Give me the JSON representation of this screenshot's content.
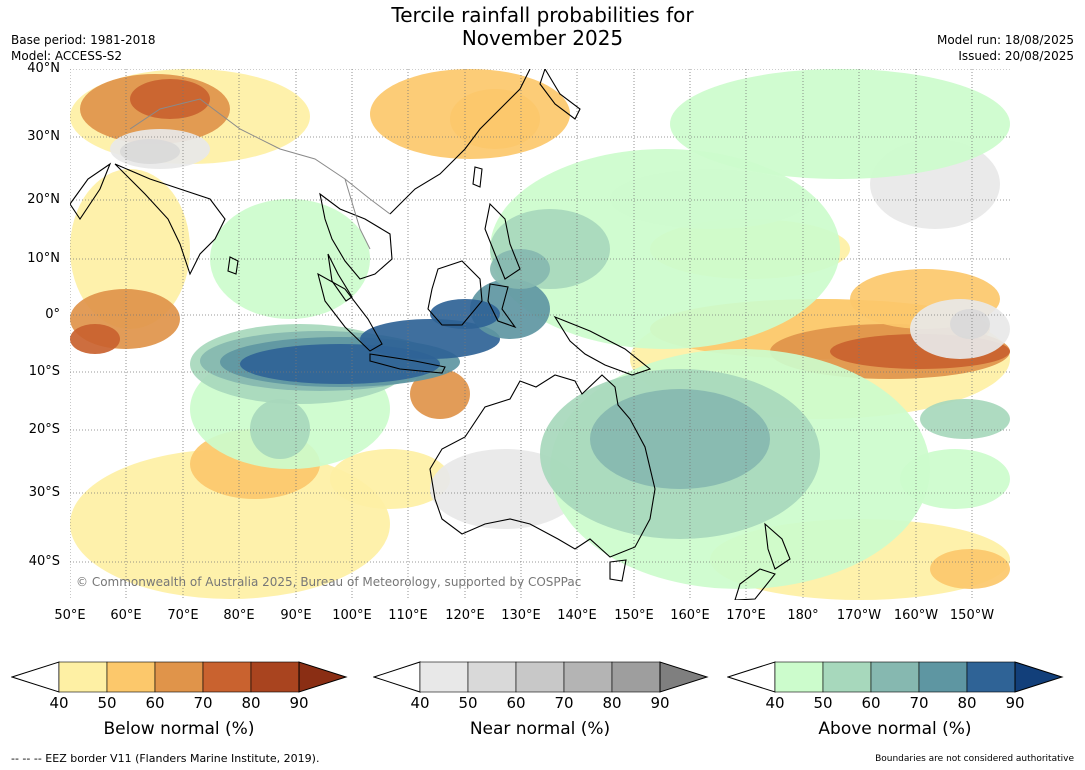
{
  "header": {
    "title_line1": "Tercile rainfall probabilities for",
    "title_line2": "November 2025",
    "base_period": "Base period: 1981-2018",
    "model": "Model: ACCESS-S2",
    "model_run": "Model run: 18/08/2025",
    "issued": "Issued: 20/08/2025"
  },
  "map": {
    "lat_labels": [
      "40°N",
      "30°N",
      "20°N",
      "10°N",
      "0°",
      "10°S",
      "20°S",
      "30°S",
      "40°S"
    ],
    "lon_labels": [
      "50°E",
      "60°E",
      "70°E",
      "80°E",
      "90°E",
      "100°E",
      "110°E",
      "120°E",
      "130°E",
      "140°E",
      "150°E",
      "160°E",
      "170°E",
      "180°",
      "170°W",
      "160°W",
      "150°W"
    ],
    "copyright": "© Commonwealth of Australia 2025, Bureau of Meteorology, supported by COSPPac",
    "palette": {
      "below": [
        "#fef0a4",
        "#fcc86b",
        "#e0944a",
        "#c9622f",
        "#a9441f",
        "#8a2e14"
      ],
      "near": [
        "#e8e8e8",
        "#d9d9d9",
        "#c8c8c8",
        "#b4b4b4",
        "#9e9e9e",
        "#7f7f7f"
      ],
      "above": [
        "#ccfccc",
        "#a7d8bc",
        "#86b8b0",
        "#5e96a2",
        "#2f6396",
        "#123f7a"
      ],
      "land": "#000000",
      "borders": "#8a8a8a"
    }
  },
  "colorbars": [
    {
      "id": "below",
      "title": "Below normal (%)",
      "ticks": [
        "40",
        "50",
        "60",
        "70",
        "80",
        "90"
      ],
      "colors": [
        "#fef0a4",
        "#fcc86b",
        "#e0944a",
        "#c9622f",
        "#a9441f"
      ],
      "extend_color": "#8a2e14"
    },
    {
      "id": "near",
      "title": "Near normal (%)",
      "ticks": [
        "40",
        "50",
        "60",
        "70",
        "80",
        "90"
      ],
      "colors": [
        "#e8e8e8",
        "#d9d9d9",
        "#c8c8c8",
        "#b4b4b4",
        "#9e9e9e"
      ],
      "extend_color": "#7f7f7f"
    },
    {
      "id": "above",
      "title": "Above normal (%)",
      "ticks": [
        "40",
        "50",
        "60",
        "70",
        "80",
        "90"
      ],
      "colors": [
        "#ccfccc",
        "#a7d8bc",
        "#86b8b0",
        "#5e96a2",
        "#2f6396"
      ],
      "extend_color": "#123f7a"
    }
  ],
  "footer": {
    "eez": "--  --  -- EEZ border V11 (Flanders Marine Institute, 2019).",
    "boundaries": "Boundaries are not considered authoritative"
  }
}
